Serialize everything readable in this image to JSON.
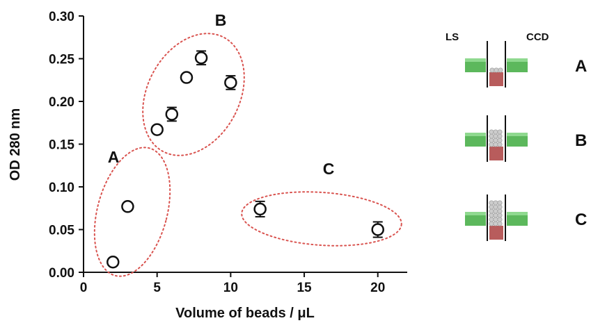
{
  "chart_data": {
    "type": "scatter",
    "xlabel": "Volume of beads / μL",
    "ylabel": "OD 280 nm",
    "xlim": [
      0,
      22
    ],
    "ylim": [
      0,
      0.3
    ],
    "x_ticks": [
      "0",
      "5",
      "10",
      "15",
      "20"
    ],
    "y_ticks": [
      "0.00",
      "0.05",
      "0.10",
      "0.15",
      "0.20",
      "0.25",
      "0.30"
    ],
    "grid": false,
    "points": [
      {
        "x": 2,
        "y": 0.012,
        "err": 0
      },
      {
        "x": 3,
        "y": 0.077,
        "err": 0
      },
      {
        "x": 5,
        "y": 0.167,
        "err": 0
      },
      {
        "x": 6,
        "y": 0.185,
        "err": 0.008
      },
      {
        "x": 7,
        "y": 0.228,
        "err": 0
      },
      {
        "x": 8,
        "y": 0.251,
        "err": 0.008
      },
      {
        "x": 10,
        "y": 0.222,
        "err": 0.008
      },
      {
        "x": 12,
        "y": 0.074,
        "err": 0.009
      },
      {
        "x": 20,
        "y": 0.05,
        "err": 0.009
      }
    ],
    "group_labels": [
      "A",
      "B",
      "C"
    ],
    "group_ellipse_color": "#d9534f"
  },
  "schematic": {
    "left_label": "LS",
    "right_label": "CCD",
    "rows": [
      "A",
      "B",
      "C"
    ],
    "fill_levels": [
      1,
      4,
      6
    ],
    "colors": {
      "beam": "#5cb85c",
      "reservoir": "#b85c5c",
      "bead": "#cccccc"
    }
  }
}
